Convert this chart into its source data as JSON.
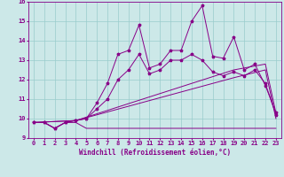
{
  "xlabel": "Windchill (Refroidissement éolien,°C)",
  "background_color": "#cce8e8",
  "line_color": "#880088",
  "xlim": [
    -0.5,
    23.5
  ],
  "ylim": [
    9,
    16
  ],
  "xticks": [
    0,
    1,
    2,
    3,
    4,
    5,
    6,
    7,
    8,
    9,
    10,
    11,
    12,
    13,
    14,
    15,
    16,
    17,
    18,
    19,
    20,
    21,
    22,
    23
  ],
  "yticks": [
    9,
    10,
    11,
    12,
    13,
    14,
    15,
    16
  ],
  "series_flat_x": [
    0,
    1,
    2,
    3,
    4,
    5,
    6,
    7,
    8,
    9,
    10,
    11,
    12,
    13,
    14,
    15,
    16,
    17,
    18,
    19,
    20,
    21,
    22,
    23
  ],
  "series_flat_y": [
    9.8,
    9.8,
    9.5,
    9.8,
    9.8,
    9.5,
    9.5,
    9.5,
    9.5,
    9.5,
    9.5,
    9.5,
    9.5,
    9.5,
    9.5,
    9.5,
    9.5,
    9.5,
    9.5,
    9.5,
    9.5,
    9.5,
    9.5,
    9.5
  ],
  "series_diag1_x": [
    0,
    4,
    19,
    22,
    23
  ],
  "series_diag1_y": [
    9.8,
    9.9,
    12.1,
    12.5,
    10.0
  ],
  "series_diag2_x": [
    0,
    4,
    19,
    22,
    23
  ],
  "series_diag2_y": [
    9.8,
    9.9,
    12.5,
    12.8,
    10.3
  ],
  "series_jagged1_x": [
    0,
    1,
    2,
    3,
    4,
    5,
    6,
    7,
    8,
    9,
    10,
    11,
    12,
    13,
    14,
    15,
    16,
    17,
    18,
    19,
    20,
    21,
    22,
    23
  ],
  "series_jagged1_y": [
    9.8,
    9.8,
    9.5,
    9.8,
    9.9,
    10.0,
    10.8,
    11.8,
    13.3,
    13.5,
    14.8,
    12.6,
    12.8,
    13.5,
    13.5,
    15.0,
    15.8,
    13.2,
    13.1,
    14.2,
    12.5,
    12.8,
    11.7,
    10.3
  ],
  "series_jagged2_x": [
    0,
    1,
    2,
    3,
    4,
    5,
    6,
    7,
    8,
    9,
    10,
    11,
    12,
    13,
    14,
    15,
    16,
    17,
    18,
    19,
    20,
    21,
    22,
    23
  ],
  "series_jagged2_y": [
    9.8,
    9.8,
    9.5,
    9.8,
    9.9,
    10.0,
    10.5,
    11.0,
    12.0,
    12.5,
    13.3,
    12.3,
    12.5,
    13.0,
    13.0,
    13.3,
    13.0,
    12.4,
    12.2,
    12.4,
    12.2,
    12.5,
    11.8,
    10.2
  ],
  "grid_color": "#99cccc",
  "label_fontsize": 5.5,
  "tick_fontsize": 5.0
}
